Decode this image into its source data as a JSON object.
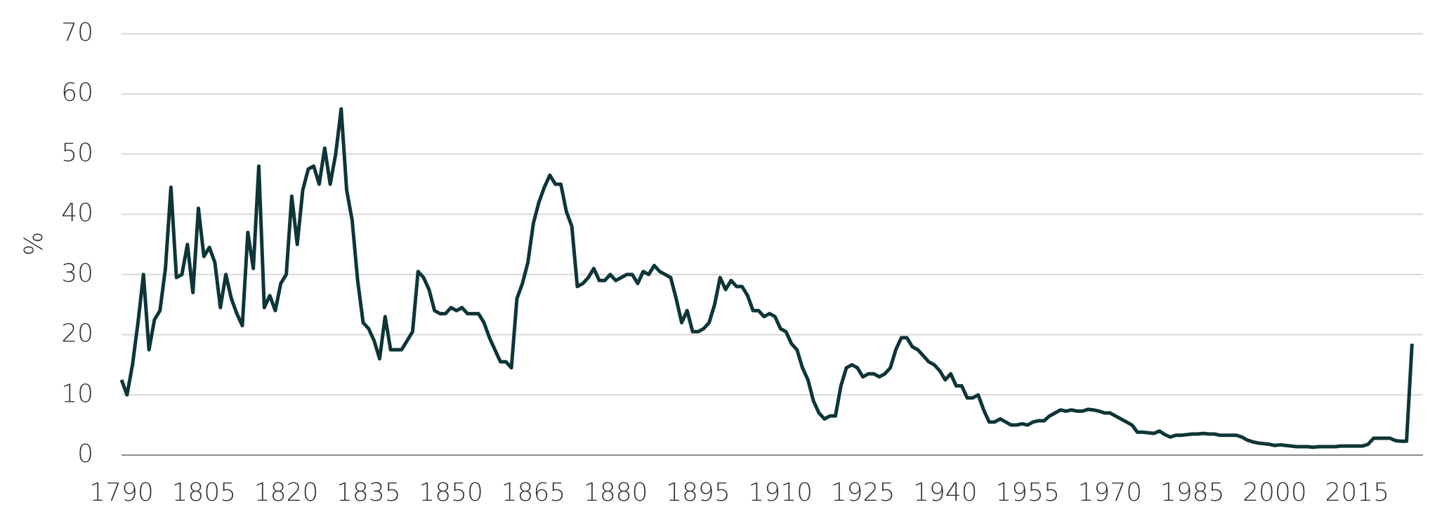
{
  "chart_data": {
    "type": "line",
    "ylabel": "%",
    "x": [
      1790,
      1791,
      1792,
      1793,
      1794,
      1795,
      1796,
      1797,
      1798,
      1799,
      1800,
      1801,
      1802,
      1803,
      1804,
      1805,
      1806,
      1807,
      1808,
      1809,
      1810,
      1811,
      1812,
      1813,
      1814,
      1815,
      1816,
      1817,
      1818,
      1819,
      1820,
      1821,
      1822,
      1823,
      1824,
      1825,
      1826,
      1827,
      1828,
      1829,
      1830,
      1831,
      1832,
      1833,
      1834,
      1835,
      1836,
      1837,
      1838,
      1839,
      1840,
      1841,
      1842,
      1843,
      1844,
      1845,
      1846,
      1847,
      1848,
      1849,
      1850,
      1851,
      1852,
      1853,
      1854,
      1855,
      1856,
      1857,
      1858,
      1859,
      1860,
      1861,
      1862,
      1863,
      1864,
      1865,
      1866,
      1867,
      1868,
      1869,
      1870,
      1871,
      1872,
      1873,
      1874,
      1875,
      1876,
      1877,
      1878,
      1879,
      1880,
      1881,
      1882,
      1883,
      1884,
      1885,
      1886,
      1887,
      1888,
      1889,
      1890,
      1891,
      1892,
      1893,
      1894,
      1895,
      1896,
      1897,
      1898,
      1899,
      1900,
      1901,
      1902,
      1903,
      1904,
      1905,
      1906,
      1907,
      1908,
      1909,
      1910,
      1911,
      1912,
      1913,
      1914,
      1915,
      1916,
      1917,
      1918,
      1919,
      1920,
      1921,
      1922,
      1923,
      1924,
      1925,
      1926,
      1927,
      1928,
      1929,
      1930,
      1931,
      1932,
      1933,
      1934,
      1935,
      1936,
      1937,
      1938,
      1939,
      1940,
      1941,
      1942,
      1943,
      1944,
      1945,
      1946,
      1947,
      1948,
      1949,
      1950,
      1951,
      1952,
      1953,
      1954,
      1955,
      1956,
      1957,
      1958,
      1959,
      1960,
      1961,
      1962,
      1963,
      1964,
      1965,
      1966,
      1967,
      1968,
      1969,
      1970,
      1971,
      1972,
      1973,
      1974,
      1975,
      1976,
      1977,
      1978,
      1979,
      1980,
      1981,
      1982,
      1983,
      1984,
      1985,
      1986,
      1987,
      1988,
      1989,
      1990,
      1991,
      1992,
      1993,
      1994,
      1995,
      1996,
      1997,
      1998,
      1999,
      2000,
      2001,
      2002,
      2003,
      2004,
      2005,
      2006,
      2007,
      2008,
      2009,
      2010,
      2011,
      2012,
      2013,
      2014,
      2015,
      2016,
      2017,
      2018,
      2019,
      2020,
      2021,
      2022,
      2023,
      2024,
      2025
    ],
    "series": [
      {
        "color": "#0e3538",
        "values": [
          12.5,
          10,
          15,
          22,
          30,
          17.5,
          22.5,
          24,
          31,
          44.5,
          29.5,
          30,
          35,
          27,
          41,
          33,
          34.5,
          32,
          24.5,
          30,
          26,
          23.5,
          21.5,
          37,
          31,
          48,
          24.5,
          26.5,
          24,
          28.5,
          30,
          43,
          35,
          44,
          47.5,
          48,
          45,
          51,
          45,
          50,
          57.5,
          44,
          39,
          29,
          22,
          21,
          19,
          16,
          23,
          17.5,
          17.5,
          17.5,
          19,
          20.5,
          30.5,
          29.5,
          27.5,
          24,
          23.5,
          23.5,
          24.5,
          24,
          24.5,
          23.5,
          23.5,
          23.5,
          22,
          19.5,
          17.5,
          15.5,
          15.5,
          14.5,
          26,
          28.5,
          32,
          38.5,
          42,
          44.5,
          46.5,
          45,
          45,
          40.5,
          38,
          28,
          28.5,
          29.5,
          31,
          29,
          29,
          30,
          29,
          29.5,
          30,
          30,
          28.5,
          30.5,
          30,
          31.5,
          30.5,
          30,
          29.5,
          26,
          22,
          24,
          20.5,
          20.5,
          21,
          22,
          25,
          29.5,
          27.5,
          29,
          28,
          28,
          26.5,
          24,
          24,
          23,
          23.5,
          23,
          21,
          20.5,
          18.5,
          17.5,
          14.5,
          12.5,
          9,
          7,
          6,
          6.5,
          6.5,
          11.5,
          14.5,
          15,
          14.5,
          13,
          13.5,
          13.5,
          13,
          13.5,
          14.5,
          17.5,
          19.5,
          19.5,
          18,
          17.5,
          16.5,
          15.5,
          15,
          14,
          12.5,
          13.5,
          11.5,
          11.5,
          9.5,
          9.5,
          10,
          7.5,
          5.5,
          5.5,
          6,
          5.5,
          5,
          5,
          5.2,
          5,
          5.5,
          5.7,
          5.7,
          6.5,
          7,
          7.5,
          7.3,
          7.5,
          7.3,
          7.3,
          7.6,
          7.5,
          7.3,
          7,
          7,
          6.5,
          6,
          5.5,
          5,
          3.8,
          3.8,
          3.7,
          3.6,
          4,
          3.4,
          3,
          3.3,
          3.3,
          3.4,
          3.5,
          3.5,
          3.6,
          3.5,
          3.5,
          3.3,
          3.3,
          3.3,
          3.3,
          3,
          2.5,
          2.2,
          2,
          1.9,
          1.8,
          1.6,
          1.7,
          1.6,
          1.5,
          1.4,
          1.4,
          1.4,
          1.3,
          1.4,
          1.4,
          1.4,
          1.4,
          1.5,
          1.5,
          1.5,
          1.5,
          1.5,
          1.8,
          2.8,
          2.8,
          2.8,
          2.8,
          2.4,
          2.3,
          2.3,
          18.5
        ]
      }
    ],
    "xlim": [
      1790,
      2027
    ],
    "xticks": [
      1790,
      1805,
      1820,
      1835,
      1850,
      1865,
      1880,
      1895,
      1910,
      1925,
      1940,
      1955,
      1970,
      1985,
      2000,
      2015
    ],
    "ylim": [
      0,
      70
    ],
    "yticks": [
      0,
      10,
      20,
      30,
      40,
      50,
      60,
      70
    ],
    "grid": true
  }
}
